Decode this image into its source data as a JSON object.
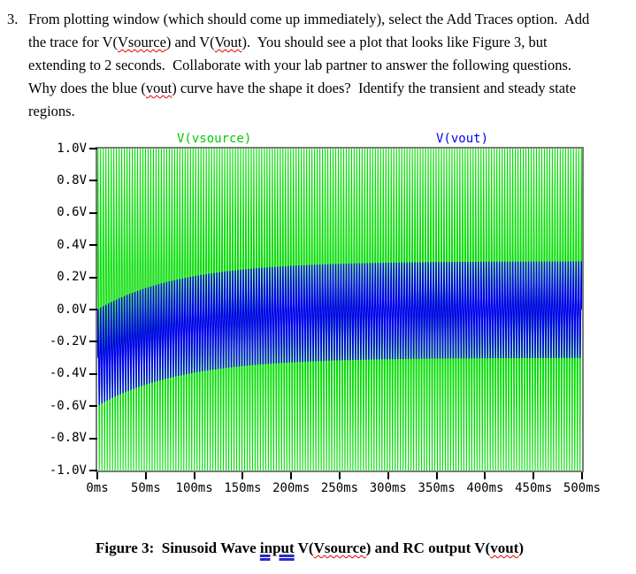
{
  "problem": {
    "number": "3.",
    "lines": [
      [
        {
          "t": "From plotting window (which should come up immediately), select the Add Traces option.  Add"
        }
      ],
      [
        {
          "t": "the trace for V("
        },
        {
          "t": "Vsource",
          "m": "spell"
        },
        {
          "t": ") and V("
        },
        {
          "t": "Vout",
          "m": "spell"
        },
        {
          "t": ").  You should see a plot that looks like Figure 3, but"
        }
      ],
      [
        {
          "t": "extending to 2 seconds.  Collaborate with your lab partner to answer the following questions."
        }
      ],
      [
        {
          "t": "Why does the blue ("
        },
        {
          "t": "vout",
          "m": "spell"
        },
        {
          "t": ") curve have the shape it does?  Identify the transient and steady state"
        }
      ],
      [
        {
          "t": "regions."
        }
      ]
    ]
  },
  "figure": {
    "legend": [
      {
        "label": "V(vsource)",
        "color": "#00cc00"
      },
      {
        "label": "V(vout)",
        "color": "#0000ee"
      }
    ],
    "caption": [
      {
        "t": "Figure 3:  Sinusoid Wave "
      },
      {
        "t": "input",
        "m": "grammar"
      },
      {
        "t": " V("
      },
      {
        "t": "Vsource",
        "m": "spell"
      },
      {
        "t": ") and RC output V("
      },
      {
        "t": "vout",
        "m": "spell"
      },
      {
        "t": ")"
      }
    ]
  },
  "chart_data": {
    "type": "line",
    "legend_position": "top",
    "grid": false,
    "border_color": "#7a7a7a",
    "x": {
      "unit": "ms",
      "min": 0,
      "max": 500,
      "tick_step": 50,
      "tick_labels": [
        "0ms",
        "50ms",
        "100ms",
        "150ms",
        "200ms",
        "250ms",
        "300ms",
        "350ms",
        "400ms",
        "450ms",
        "500ms"
      ]
    },
    "y": {
      "unit": "V",
      "min": -1.0,
      "max": 1.0,
      "tick_step": 0.2,
      "tick_labels": [
        "1.0V",
        "0.8V",
        "0.6V",
        "0.4V",
        "0.2V",
        "0.0V",
        "-0.2V",
        "-0.4V",
        "-0.6V",
        "-0.8V",
        "-1.0V"
      ]
    },
    "series": [
      {
        "name": "V(vsource)",
        "color": "#00dd00",
        "waveform": "sine",
        "amplitude_V": 1.0,
        "dc_offset_V": 0,
        "frequency_hz": 367,
        "envelope_V": [
          -1.0,
          1.0
        ]
      },
      {
        "name": "V(vout)",
        "color": "#0000ee",
        "waveform": "sine_plus_decaying_offset",
        "amplitude_V": 0.3,
        "frequency_hz": 367,
        "transient_offset_V": -0.3,
        "time_constant_ms": 85,
        "envelope_initial_V": [
          -0.6,
          0.0
        ],
        "envelope_steady_state_V": [
          -0.3,
          0.3
        ]
      }
    ]
  }
}
